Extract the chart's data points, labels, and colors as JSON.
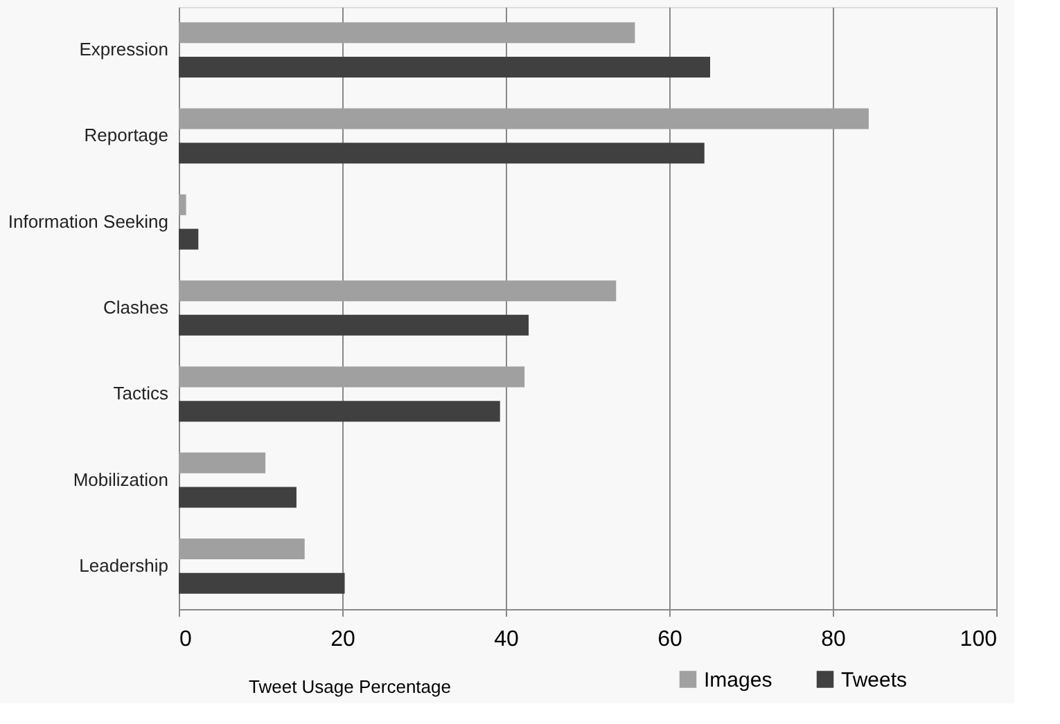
{
  "chart_data": {
    "type": "bar",
    "orientation": "horizontal",
    "xlabel": "Tweet Usage Percentage",
    "categories": [
      "Expression",
      "Reportage",
      "Information Seeking",
      "Clashes",
      "Tactics",
      "Mobilization",
      "Leadership"
    ],
    "series": [
      {
        "name": "Images",
        "color": "#a0a0a0",
        "values": [
          55.8,
          84.4,
          0.9,
          53.5,
          42.3,
          10.6,
          15.4
        ]
      },
      {
        "name": "Tweets",
        "color": "#404040",
        "values": [
          65.0,
          64.3,
          2.4,
          42.8,
          39.3,
          14.4,
          20.3
        ]
      }
    ],
    "xlim": [
      0,
      100
    ],
    "xticks": [
      0,
      20,
      40,
      60,
      80,
      100
    ],
    "grid": "x",
    "legend": "bottom right"
  }
}
